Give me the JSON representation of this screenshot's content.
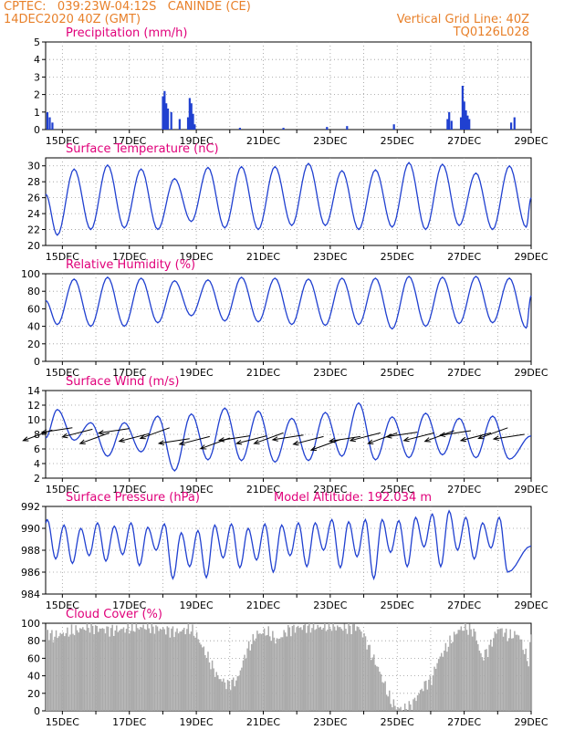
{
  "header": {
    "station_line": "CPTEC:   039:23W-04:12S   CANINDE (CE)",
    "date_line": "14DEC2020 40Z (GMT)",
    "grid_note": "Vertical Grid Line: 40Z",
    "model_code": "TQ0126L028"
  },
  "colors": {
    "header": "#e8802a",
    "title": "#e0007a",
    "series": "#2040d0",
    "cloud": "#aaaaaa",
    "grid": "#999999"
  },
  "x_tick_labels": [
    "15DEC",
    "17DEC",
    "19DEC",
    "21DEC",
    "23DEC",
    "25DEC",
    "27DEC",
    "29DEC"
  ],
  "chart_data": [
    {
      "type": "bar",
      "title": "Precipitation (mm/h)",
      "ylim": [
        0,
        5
      ],
      "yticks": [
        0,
        1,
        2,
        3,
        4,
        5
      ],
      "x_range": [
        14.5,
        29
      ],
      "grid": true,
      "bars": [
        [
          14.55,
          1.0
        ],
        [
          14.62,
          0.7
        ],
        [
          14.7,
          0.4
        ],
        [
          18.0,
          1.9
        ],
        [
          18.05,
          2.2
        ],
        [
          18.1,
          1.5
        ],
        [
          18.15,
          1.2
        ],
        [
          18.25,
          1.0
        ],
        [
          18.5,
          0.6
        ],
        [
          18.75,
          0.7
        ],
        [
          18.8,
          1.8
        ],
        [
          18.85,
          1.5
        ],
        [
          18.9,
          0.9
        ],
        [
          18.95,
          0.3
        ],
        [
          20.3,
          0.1
        ],
        [
          21.6,
          0.1
        ],
        [
          22.9,
          0.15
        ],
        [
          23.5,
          0.2
        ],
        [
          24.9,
          0.3
        ],
        [
          26.5,
          0.6
        ],
        [
          26.55,
          1.0
        ],
        [
          26.62,
          0.5
        ],
        [
          26.9,
          0.7
        ],
        [
          26.95,
          2.5
        ],
        [
          27.0,
          1.6
        ],
        [
          27.05,
          1.1
        ],
        [
          27.1,
          0.8
        ],
        [
          27.15,
          0.6
        ],
        [
          28.4,
          0.4
        ],
        [
          28.5,
          0.7
        ]
      ]
    },
    {
      "type": "line",
      "title": "Surface Temperature (nC)",
      "ylim": [
        20,
        31
      ],
      "yticks": [
        20,
        22,
        24,
        26,
        28,
        30
      ],
      "x_range": [
        14.5,
        29
      ],
      "grid": true,
      "min_values": [
        21.3,
        22.0,
        22.2,
        22.0,
        23.0,
        22.2,
        22.0,
        22.5,
        22.5,
        22.0,
        22.3,
        22.0,
        22.5,
        22.0,
        22.3
      ],
      "max_values": [
        29.6,
        30.1,
        29.6,
        28.4,
        29.8,
        29.9,
        29.9,
        30.3,
        29.4,
        29.5,
        30.4,
        30.2,
        29.1,
        30.0,
        30.6
      ],
      "end_value": 26.0
    },
    {
      "type": "line",
      "title": "Relative Humidity (%)",
      "ylim": [
        0,
        100
      ],
      "yticks": [
        0,
        20,
        40,
        60,
        80,
        100
      ],
      "x_range": [
        14.5,
        29
      ],
      "grid": true,
      "min_values": [
        42,
        40,
        40,
        44,
        52,
        46,
        45,
        42,
        41,
        42,
        37,
        40,
        43,
        44,
        38
      ],
      "max_values": [
        97,
        94,
        96,
        95,
        92,
        93,
        96,
        95,
        94,
        95,
        95,
        97,
        96,
        97,
        95
      ],
      "end_value": 75
    },
    {
      "type": "line",
      "title": "Surface Wind (m/s)",
      "ylim": [
        2,
        14
      ],
      "yticks": [
        2,
        4,
        6,
        8,
        10,
        12,
        14
      ],
      "x_range": [
        14.5,
        29
      ],
      "grid": true,
      "speed_max_values": [
        11.4,
        9.6,
        9.6,
        10.5,
        10.8,
        11.6,
        11.2,
        10.2,
        11.0,
        12.3,
        10.4,
        10.9,
        10.2,
        10.5
      ],
      "speed_min_values": [
        7.2,
        5.0,
        5.6,
        3.0,
        4.5,
        4.4,
        4.2,
        4.4,
        5.0,
        4.5,
        4.8,
        5.2,
        4.8,
        4.6
      ],
      "end_value": 7.8,
      "wind_vectors": [
        [
          14.7,
          8.6
        ],
        [
          15.3,
          8.9
        ],
        [
          15.9,
          8.7
        ],
        [
          16.4,
          8.2
        ],
        [
          17.0,
          8.8
        ],
        [
          17.6,
          8.1
        ],
        [
          18.2,
          8.9
        ],
        [
          18.8,
          7.4
        ],
        [
          19.4,
          7.7
        ],
        [
          20.0,
          7.5
        ],
        [
          20.6,
          7.8
        ],
        [
          21.1,
          7.8
        ],
        [
          21.6,
          8.2
        ],
        [
          22.2,
          7.9
        ],
        [
          22.8,
          7.7
        ],
        [
          23.3,
          7.3
        ],
        [
          23.9,
          7.7
        ],
        [
          24.5,
          8.2
        ],
        [
          25.0,
          8.2
        ],
        [
          25.6,
          8.3
        ],
        [
          26.1,
          8.2
        ],
        [
          26.7,
          8.5
        ],
        [
          27.2,
          8.5
        ],
        [
          27.8,
          8.2
        ],
        [
          28.3,
          8.9
        ],
        [
          28.8,
          8.0
        ]
      ]
    },
    {
      "type": "line",
      "title": "Surface Pressure (hPa)",
      "annotation": "Model Altitude: 192.034 m",
      "ylim": [
        984,
        992
      ],
      "yticks": [
        984,
        986,
        988,
        990,
        992
      ],
      "x_range": [
        14.5,
        29
      ],
      "grid": true,
      "daily": [
        [
          990.8,
          987.2,
          990.3,
          986.8
        ],
        [
          990.0,
          987.5,
          990.5,
          987.0
        ],
        [
          990.2,
          987.6,
          990.5,
          986.6
        ],
        [
          990.1,
          988.0,
          990.4,
          985.4
        ],
        [
          989.6,
          986.5,
          989.8,
          985.5
        ],
        [
          990.3,
          987.3,
          990.4,
          986.4
        ],
        [
          990.0,
          987.1,
          990.4,
          986.0
        ],
        [
          990.3,
          987.5,
          990.5,
          986.5
        ],
        [
          990.5,
          988.0,
          990.8,
          986.4
        ],
        [
          990.6,
          987.4,
          990.8,
          985.4
        ],
        [
          990.8,
          987.8,
          990.7,
          986.5
        ],
        [
          991.0,
          988.3,
          991.3,
          986.5
        ],
        [
          991.6,
          988.0,
          991.0,
          987.2
        ],
        [
          990.5,
          988.2,
          991.0,
          986.0
        ]
      ],
      "start_value": 990.5,
      "end_value": 988.4
    },
    {
      "type": "bar",
      "title": "Cloud Cover (%)",
      "ylim": [
        0,
        100
      ],
      "yticks": [
        0,
        20,
        40,
        60,
        80,
        100
      ],
      "x_range": [
        14.5,
        29
      ],
      "grid": true,
      "profile": [
        [
          14.5,
          90
        ],
        [
          14.7,
          85
        ],
        [
          15.0,
          88
        ],
        [
          15.4,
          92
        ],
        [
          15.8,
          96
        ],
        [
          16.0,
          94
        ],
        [
          16.5,
          92
        ],
        [
          17.0,
          94
        ],
        [
          17.5,
          96
        ],
        [
          18.0,
          93
        ],
        [
          18.4,
          90
        ],
        [
          18.8,
          94
        ],
        [
          19.0,
          85
        ],
        [
          19.2,
          70
        ],
        [
          19.4,
          55
        ],
        [
          19.6,
          40
        ],
        [
          19.9,
          30
        ],
        [
          20.2,
          35
        ],
        [
          20.5,
          70
        ],
        [
          20.8,
          88
        ],
        [
          21.1,
          90
        ],
        [
          21.4,
          80
        ],
        [
          21.7,
          92
        ],
        [
          22.0,
          95
        ],
        [
          22.4,
          96
        ],
        [
          22.8,
          95
        ],
        [
          23.0,
          97
        ],
        [
          23.4,
          94
        ],
        [
          23.8,
          96
        ],
        [
          24.0,
          85
        ],
        [
          24.2,
          65
        ],
        [
          24.4,
          50
        ],
        [
          24.6,
          30
        ],
        [
          24.8,
          10
        ],
        [
          25.0,
          3
        ],
        [
          25.2,
          2
        ],
        [
          25.4,
          6
        ],
        [
          25.6,
          18
        ],
        [
          25.8,
          30
        ],
        [
          26.0,
          35
        ],
        [
          26.2,
          58
        ],
        [
          26.5,
          75
        ],
        [
          26.8,
          92
        ],
        [
          27.0,
          95
        ],
        [
          27.3,
          90
        ],
        [
          27.5,
          60
        ],
        [
          27.7,
          70
        ],
        [
          28.0,
          95
        ],
        [
          28.3,
          85
        ],
        [
          28.6,
          88
        ],
        [
          28.9,
          55
        ],
        [
          29.0,
          90
        ]
      ]
    }
  ]
}
